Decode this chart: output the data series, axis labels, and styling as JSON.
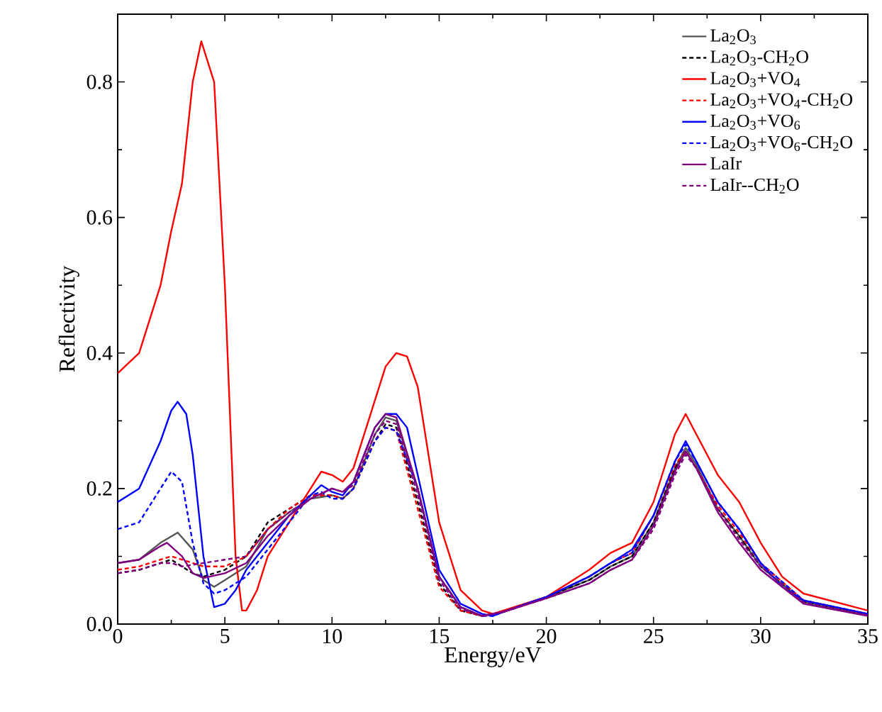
{
  "chart_data": {
    "type": "line",
    "xlabel": "Energy/eV",
    "ylabel": "Reflectivity",
    "xlim": [
      0,
      35
    ],
    "xticks": [
      0,
      5,
      10,
      15,
      20,
      25,
      30,
      35
    ],
    "ylim": [
      0,
      0.9
    ],
    "yticks": [
      {
        "value": 0,
        "label": "0.0"
      },
      0.2,
      0.4,
      0.6,
      0.8
    ],
    "legend": "top right",
    "grid": false,
    "marker": "none",
    "series": [
      {
        "name": "La$_{2}$O$_{3}$",
        "color": "#555555",
        "line_style": "solid",
        "x": [
          0,
          1,
          2,
          2.8,
          3.5,
          4,
          4.5,
          5,
          6,
          7,
          8,
          9,
          10,
          10.5,
          11,
          12,
          12.5,
          13,
          14,
          15,
          16,
          17,
          18,
          20,
          22,
          23,
          24,
          25,
          26,
          26.5,
          27,
          28,
          29,
          30,
          32,
          35
        ],
        "values": [
          0.09,
          0.095,
          0.12,
          0.135,
          0.11,
          0.065,
          0.055,
          0.065,
          0.085,
          0.14,
          0.165,
          0.185,
          0.19,
          0.185,
          0.2,
          0.28,
          0.305,
          0.3,
          0.2,
          0.07,
          0.025,
          0.012,
          0.018,
          0.04,
          0.065,
          0.085,
          0.1,
          0.15,
          0.23,
          0.26,
          0.235,
          0.17,
          0.13,
          0.085,
          0.033,
          0.013
        ]
      },
      {
        "name": "La$_{2}$O$_{3}$-CH$_{2}$O",
        "color": "#000000",
        "line_style": "dashed",
        "x": [
          0,
          1,
          2,
          2.5,
          3,
          3.5,
          4,
          5,
          6,
          7,
          8,
          9,
          10,
          10.5,
          11,
          12,
          12.5,
          13,
          14,
          15,
          16,
          17,
          18,
          20,
          22,
          23,
          24,
          25,
          26,
          26.5,
          27,
          28,
          29,
          30,
          32,
          35
        ],
        "values": [
          0.075,
          0.08,
          0.09,
          0.095,
          0.085,
          0.075,
          0.07,
          0.08,
          0.1,
          0.15,
          0.17,
          0.19,
          0.19,
          0.185,
          0.2,
          0.27,
          0.295,
          0.29,
          0.18,
          0.06,
          0.02,
          0.012,
          0.018,
          0.04,
          0.065,
          0.085,
          0.1,
          0.15,
          0.23,
          0.255,
          0.23,
          0.17,
          0.13,
          0.085,
          0.033,
          0.013
        ]
      },
      {
        "name": "La$_{2}$O$_{3}$+VO$_{4}$",
        "color": "#ff0000",
        "line_style": "solid",
        "x": [
          0,
          1,
          2,
          2.5,
          3,
          3.5,
          3.9,
          4.5,
          5,
          5.5,
          5.8,
          6,
          6.5,
          7,
          8,
          9,
          9.5,
          10,
          10.5,
          11,
          12,
          12.5,
          13,
          13.5,
          14,
          15,
          16,
          17,
          17.5,
          18,
          20,
          21,
          22,
          23,
          24,
          25,
          26,
          26.5,
          27,
          28,
          29,
          30,
          31,
          32,
          35
        ],
        "values": [
          0.37,
          0.4,
          0.5,
          0.58,
          0.65,
          0.8,
          0.86,
          0.8,
          0.5,
          0.1,
          0.02,
          0.02,
          0.05,
          0.1,
          0.15,
          0.2,
          0.225,
          0.22,
          0.21,
          0.23,
          0.33,
          0.38,
          0.4,
          0.395,
          0.35,
          0.15,
          0.05,
          0.02,
          0.015,
          0.02,
          0.04,
          0.06,
          0.08,
          0.105,
          0.12,
          0.18,
          0.28,
          0.31,
          0.28,
          0.22,
          0.18,
          0.12,
          0.07,
          0.045,
          0.02
        ]
      },
      {
        "name": "La$_{2}$O$_{3}$+VO$_{4}$-CH$_{2}$O",
        "color": "#ff0000",
        "line_style": "dashed",
        "x": [
          0,
          1,
          2,
          2.5,
          3,
          4,
          5,
          6,
          7,
          8,
          9,
          10,
          10.5,
          11,
          12,
          12.5,
          13,
          14,
          15,
          16,
          17,
          18,
          20,
          22,
          23,
          24,
          25,
          26,
          26.5,
          27,
          28,
          29,
          30,
          32,
          35
        ],
        "values": [
          0.08,
          0.085,
          0.095,
          0.1,
          0.095,
          0.085,
          0.085,
          0.1,
          0.14,
          0.17,
          0.19,
          0.19,
          0.185,
          0.2,
          0.27,
          0.29,
          0.285,
          0.17,
          0.055,
          0.02,
          0.012,
          0.018,
          0.04,
          0.07,
          0.09,
          0.105,
          0.16,
          0.235,
          0.255,
          0.23,
          0.175,
          0.135,
          0.09,
          0.035,
          0.015
        ]
      },
      {
        "name": "La$_{2}$O$_{3}$+VO$_{6}$",
        "color": "#0000ff",
        "line_style": "solid",
        "x": [
          0,
          1,
          2,
          2.5,
          2.8,
          3.2,
          3.5,
          4,
          4.5,
          5,
          5.5,
          6,
          7,
          8,
          9,
          9.5,
          10,
          10.5,
          11,
          12,
          12.5,
          13,
          13.5,
          14,
          15,
          16,
          17,
          17.5,
          18,
          20,
          21,
          22,
          23,
          24,
          25,
          26,
          26.5,
          27,
          28,
          29,
          30,
          31,
          32,
          35
        ],
        "values": [
          0.18,
          0.2,
          0.27,
          0.315,
          0.328,
          0.31,
          0.25,
          0.1,
          0.025,
          0.03,
          0.05,
          0.08,
          0.12,
          0.16,
          0.19,
          0.205,
          0.195,
          0.19,
          0.21,
          0.29,
          0.31,
          0.31,
          0.29,
          0.22,
          0.08,
          0.03,
          0.015,
          0.012,
          0.018,
          0.04,
          0.055,
          0.07,
          0.09,
          0.11,
          0.16,
          0.24,
          0.27,
          0.24,
          0.18,
          0.14,
          0.09,
          0.055,
          0.035,
          0.015
        ]
      },
      {
        "name": "La$_{2}$O$_{3}$+VO$_{6}$-CH$_{2}$O",
        "color": "#0000ff",
        "line_style": "dashed",
        "x": [
          0,
          1,
          2,
          2.5,
          3,
          3.5,
          4,
          4.5,
          5,
          6,
          7,
          8,
          9,
          9.5,
          10,
          10.5,
          11,
          12,
          12.5,
          13,
          14,
          15,
          16,
          17,
          17.5,
          18,
          20,
          22,
          23,
          24,
          25,
          26,
          26.5,
          27,
          28,
          29,
          30,
          32,
          35
        ],
        "values": [
          0.14,
          0.15,
          0.2,
          0.225,
          0.21,
          0.12,
          0.06,
          0.045,
          0.05,
          0.07,
          0.11,
          0.15,
          0.19,
          0.195,
          0.185,
          0.185,
          0.2,
          0.27,
          0.29,
          0.285,
          0.2,
          0.07,
          0.025,
          0.012,
          0.012,
          0.018,
          0.04,
          0.07,
          0.09,
          0.105,
          0.16,
          0.24,
          0.265,
          0.24,
          0.18,
          0.14,
          0.09,
          0.035,
          0.015
        ]
      },
      {
        "name": "LaIr",
        "color": "#800080",
        "line_style": "solid",
        "x": [
          0,
          1,
          2,
          2.3,
          3,
          3.5,
          4,
          5,
          6,
          7,
          8,
          9,
          10,
          10.5,
          11,
          12,
          12.5,
          13,
          14,
          15,
          16,
          17,
          18,
          20,
          22,
          23,
          24,
          25,
          26,
          26.5,
          27,
          28,
          29,
          30,
          32,
          35
        ],
        "values": [
          0.09,
          0.095,
          0.115,
          0.12,
          0.1,
          0.075,
          0.068,
          0.075,
          0.09,
          0.13,
          0.16,
          0.185,
          0.2,
          0.195,
          0.21,
          0.29,
          0.31,
          0.305,
          0.2,
          0.07,
          0.025,
          0.012,
          0.018,
          0.038,
          0.06,
          0.08,
          0.095,
          0.145,
          0.225,
          0.255,
          0.23,
          0.165,
          0.12,
          0.08,
          0.03,
          0.012
        ]
      },
      {
        "name": "LaIr--CH$_{2}$O",
        "color": "#800080",
        "line_style": "dashed",
        "x": [
          0,
          1,
          2,
          2.5,
          3,
          4,
          5,
          6,
          7,
          8,
          9,
          10,
          10.5,
          11,
          12,
          12.5,
          13,
          14,
          15,
          16,
          17,
          18,
          20,
          22,
          23,
          24,
          25,
          26,
          26.5,
          27,
          28,
          29,
          30,
          32,
          35
        ],
        "values": [
          0.075,
          0.08,
          0.09,
          0.09,
          0.085,
          0.09,
          0.095,
          0.1,
          0.14,
          0.165,
          0.185,
          0.2,
          0.195,
          0.205,
          0.28,
          0.3,
          0.295,
          0.19,
          0.065,
          0.022,
          0.012,
          0.018,
          0.038,
          0.06,
          0.08,
          0.095,
          0.14,
          0.22,
          0.25,
          0.23,
          0.17,
          0.125,
          0.085,
          0.032,
          0.013
        ]
      }
    ]
  }
}
